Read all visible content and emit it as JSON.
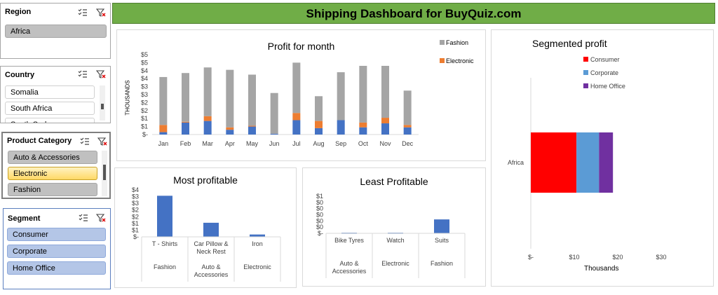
{
  "banner": {
    "title": "Shipping Dashboard for BuyQuiz.com",
    "bg": "#70ad47"
  },
  "slicers": {
    "region": {
      "title": "Region",
      "items": [
        "Africa"
      ]
    },
    "country": {
      "title": "Country",
      "items": [
        "Somalia",
        "South Africa",
        "South Sudan"
      ]
    },
    "product_category": {
      "title": "Product Category",
      "items": [
        "Auto & Accessories",
        "Electronic",
        "Fashion"
      ],
      "selected": "Electronic"
    },
    "segment": {
      "title": "Segment",
      "items": [
        "Consumer",
        "Corporate",
        "Home Office"
      ]
    }
  },
  "icons": [
    "multi-select-icon",
    "clear-filter-icon"
  ],
  "colors": {
    "fashion": "#a5a5a5",
    "electronic": "#ed7d31",
    "blue": "#4472c4",
    "consumer": "#ff0000",
    "corporate": "#5b9bd5",
    "home_office": "#7030a0",
    "selected": "#ffe699",
    "slicer_gray": "#c0c0c0",
    "slicer_blue": "#b4c6e7"
  },
  "chart_data": [
    {
      "type": "bar",
      "title": "Profit for month",
      "ylabel": "THOUSANDS",
      "categories": [
        "Jan",
        "Feb",
        "Mar",
        "Apr",
        "May",
        "Jun",
        "Jul",
        "Aug",
        "Sep",
        "Oct",
        "Nov",
        "Dec"
      ],
      "yticks": [
        "$-",
        "$1",
        "$1",
        "$2",
        "$2",
        "$3",
        "$3",
        "$4",
        "$4",
        "$5",
        "$5"
      ],
      "ylim": [
        0,
        5
      ],
      "series": [
        {
          "name": "",
          "values": [
            0.15,
            0.75,
            0.85,
            0.3,
            0.5,
            0.05,
            0.9,
            0.4,
            0.9,
            0.45,
            0.7,
            0.45
          ]
        },
        {
          "name": "Electronic",
          "values": [
            0.45,
            0.05,
            0.3,
            0.15,
            0.05,
            0.0,
            0.45,
            0.45,
            0.0,
            0.3,
            0.35,
            0.15
          ]
        },
        {
          "name": "Fashion",
          "values": [
            3.0,
            3.05,
            3.05,
            3.6,
            3.2,
            2.55,
            3.15,
            1.55,
            3.0,
            3.55,
            3.25,
            2.15
          ]
        }
      ],
      "legend": "top-right"
    },
    {
      "type": "bar",
      "title": "Most profitable",
      "yticks": [
        "$-",
        "$1",
        "$1",
        "$2",
        "$2",
        "$3",
        "$3",
        "$4"
      ],
      "ylim": [
        0,
        4
      ],
      "categories": [
        {
          "item": "T - Shirts",
          "group": "Fashion"
        },
        {
          "item": "Car Pillow & Neck Rest",
          "group": "Auto & Accessories"
        },
        {
          "item": "Iron",
          "group": "Electronic"
        }
      ],
      "values": [
        3.5,
        1.2,
        0.2
      ]
    },
    {
      "type": "bar",
      "title": "Least Profitable",
      "yticks": [
        "$-",
        "$0",
        "$0",
        "$0",
        "$0",
        "$0",
        "$1"
      ],
      "ylim": [
        0,
        1.2
      ],
      "categories": [
        {
          "item": "Bike Tyres",
          "group": "Auto & Accessories"
        },
        {
          "item": "Watch",
          "group": "Electronic"
        },
        {
          "item": "Suits",
          "group": "Fashion"
        }
      ],
      "values": [
        0.02,
        0.02,
        0.45
      ]
    },
    {
      "type": "bar",
      "title": "Segmented profit",
      "category": "Africa",
      "xlabel": "Thousands",
      "xticks": [
        "$-",
        "$10",
        "$20",
        "$30"
      ],
      "xlim": [
        0,
        30
      ],
      "series": [
        {
          "name": "Consumer",
          "values": [
            10.5
          ]
        },
        {
          "name": "Corporate",
          "values": [
            5.2
          ]
        },
        {
          "name": "Home Office",
          "values": [
            3.2
          ]
        }
      ],
      "legend": "top"
    }
  ]
}
